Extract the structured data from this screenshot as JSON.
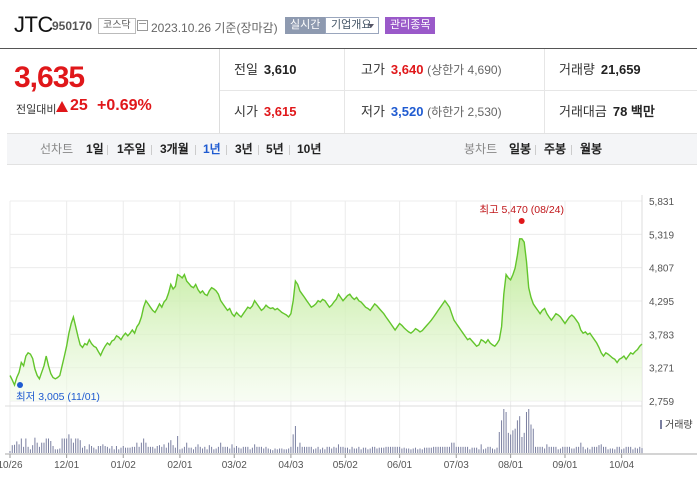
{
  "header": {
    "company_name": "JTC",
    "code": "950170",
    "market": "코스닥",
    "date": "2023.10.26  기준(장마감)",
    "realtime_button": "실시간",
    "overview_button": "기업개요",
    "managed_badge": "관리종목"
  },
  "quote": {
    "price": "3,635",
    "change_label": "전일대비",
    "change": "25",
    "change_pct": "+0.69%",
    "prev_close_label": "전일",
    "prev_close": "3,610",
    "high_label": "고가",
    "high": "3,640",
    "upper_limit": "(상한가 4,690)",
    "volume_label": "거래량",
    "volume": "21,659",
    "open_label": "시가",
    "open": "3,615",
    "low_label": "저가",
    "low": "3,520",
    "lower_limit": "(하한가 2,530)",
    "value_label": "거래대금",
    "value": "78 백만"
  },
  "colors": {
    "up": "#e0171a",
    "down": "#1f5bd1",
    "line": "#63c52c",
    "volume": "#7a7fa0"
  },
  "periods": {
    "label": "선차트",
    "items": [
      "1일",
      "1주일",
      "3개월",
      "1년",
      "3년",
      "5년",
      "10년"
    ],
    "active": "1년"
  },
  "candles": {
    "label": "봉차트",
    "items": [
      "일봉",
      "주봉",
      "월봉"
    ]
  },
  "chart_data": {
    "type": "area",
    "x_ticks": [
      "10/26",
      "12/01",
      "01/02",
      "02/01",
      "03/02",
      "04/03",
      "05/02",
      "06/01",
      "07/03",
      "08/01",
      "09/01",
      "10/04"
    ],
    "y_ticks": [
      "5,831",
      "5,319",
      "4,807",
      "4,295",
      "3,783",
      "3,271",
      "2,759"
    ],
    "ylim": [
      2759,
      5831
    ],
    "high_annotation": "최고 5,470 (08/24)",
    "low_annotation": "최저 3,005 (11/01)",
    "volume_label": "거래량",
    "grid": true,
    "x_index": [
      0,
      25,
      50,
      75,
      99,
      124,
      148,
      172,
      197,
      221,
      245,
      270
    ],
    "prices": [
      3150,
      3080,
      3005,
      3120,
      3200,
      3350,
      3300,
      3450,
      3500,
      3480,
      3410,
      3250,
      3150,
      3100,
      3200,
      3300,
      3450,
      3300,
      3180,
      3120,
      3100,
      3120,
      3150,
      3300,
      3450,
      3600,
      3800,
      3950,
      4050,
      3900,
      3750,
      3620,
      3580,
      3640,
      3620,
      3700,
      3640,
      3600,
      3580,
      3520,
      3460,
      3540,
      3600,
      3650,
      3620,
      3680,
      3700,
      3760,
      3740,
      3700,
      3760,
      3800,
      3760,
      3800,
      3850,
      3800,
      3900,
      3950,
      4050,
      4200,
      4300,
      4250,
      4200,
      4150,
      4120,
      4180,
      4250,
      4200,
      4280,
      4320,
      4420,
      4550,
      4480,
      4520,
      4700,
      4680,
      4650,
      4700,
      4600,
      4560,
      4520,
      4500,
      4550,
      4470,
      4420,
      4450,
      4400,
      4380,
      4450,
      4500,
      4480,
      4450,
      4400,
      4300,
      4250,
      4200,
      4150,
      4180,
      4100,
      4060,
      4120,
      4080,
      4050,
      4100,
      4150,
      4200,
      4180,
      4220,
      4300,
      4250,
      4200,
      4150,
      4180,
      4230,
      4200,
      4180,
      4190,
      4160,
      4180,
      4150,
      4120,
      4100,
      4080,
      4050,
      4100,
      4300,
      4600,
      4550,
      4450,
      4400,
      4350,
      4300,
      4250,
      4200,
      4220,
      4250,
      4300,
      4280,
      4320,
      4300,
      4250,
      4200,
      4230,
      4280,
      4320,
      4400,
      4350,
      4300,
      4340,
      4380,
      4400,
      4350,
      4320,
      4350,
      4300,
      4280,
      4240,
      4200,
      4180,
      4150,
      4200,
      4250,
      4220,
      4180,
      4140,
      4100,
      4050,
      4000,
      3950,
      3900,
      3850,
      3900,
      3950,
      3920,
      3880,
      3850,
      3820,
      3800,
      3830,
      3870,
      3850,
      3820,
      3840,
      3880,
      3920,
      3960,
      4000,
      4050,
      4100,
      4150,
      4200,
      4250,
      4300,
      4250,
      4200,
      4100,
      4000,
      3950,
      3900,
      3850,
      3800,
      3750,
      3700,
      3720,
      3680,
      3640,
      3600,
      3620,
      3700,
      3680,
      3650,
      3700,
      3650,
      3620,
      3600,
      3640,
      3700,
      3900,
      4400,
      4700,
      4650,
      4620,
      4700,
      4800,
      5000,
      5250,
      5250,
      5200,
      4900,
      4500,
      4350,
      4250,
      4200,
      4150,
      4100,
      4150,
      4180,
      4100,
      4050,
      4000,
      4050,
      4100,
      4080,
      4050,
      4000,
      3950,
      4000,
      4050,
      4080,
      4050,
      4000,
      3950,
      3850,
      3800,
      3820,
      3780,
      3800,
      3750,
      3700,
      3650,
      3580,
      3500,
      3450,
      3500,
      3480,
      3450,
      3420,
      3400,
      3350,
      3400,
      3420,
      3450,
      3400,
      3450,
      3500,
      3480,
      3520,
      3550,
      3600,
      3635
    ]
  }
}
